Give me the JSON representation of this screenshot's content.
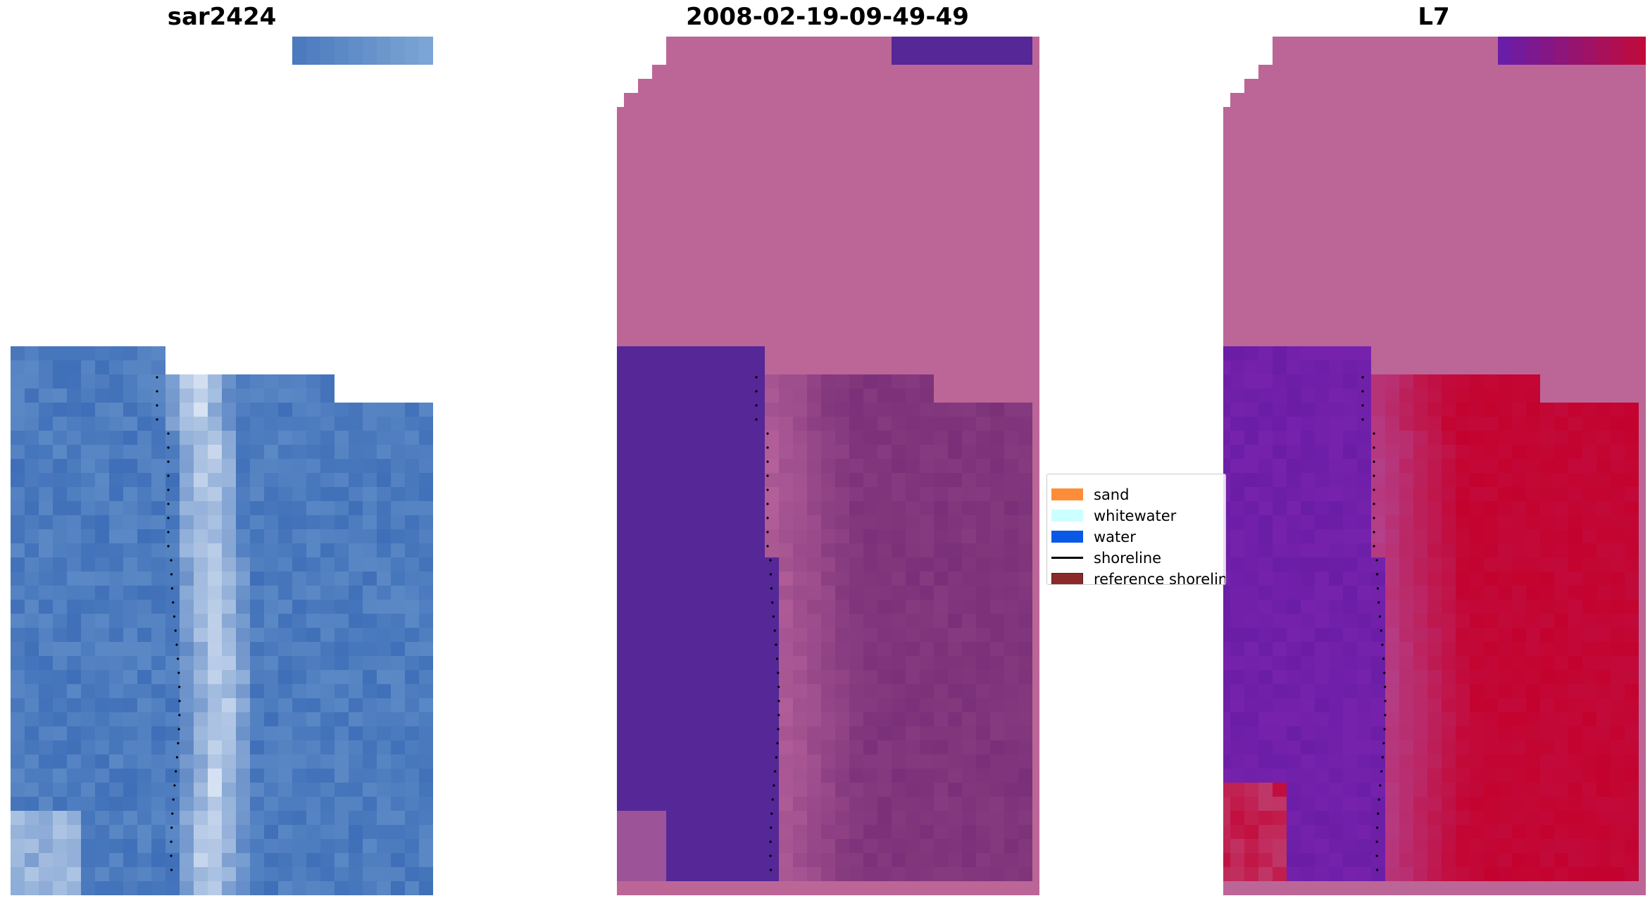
{
  "panels": [
    {
      "title": "sar2424",
      "style": "rgb"
    },
    {
      "title": "2008-02-19-09-49-49",
      "style": "classified"
    },
    {
      "title": "L7",
      "style": "index"
    }
  ],
  "legend": {
    "items": [
      {
        "label": "sand",
        "color": "#ff8c38",
        "kind": "patch"
      },
      {
        "label": "whitewater",
        "color": "#ccffff",
        "kind": "patch"
      },
      {
        "label": "water",
        "color": "#0a58e6",
        "kind": "patch"
      },
      {
        "label": "shoreline",
        "color": "#000000",
        "kind": "line"
      },
      {
        "label": "reference shoreline",
        "color": "#8b2a2a",
        "kind": "patch"
      }
    ]
  },
  "colors": {
    "nodata_pink": "#bc6697",
    "water_purple": "#552797",
    "sar_blue": "#3f6fb8",
    "sar_white": "#e6eef8",
    "index_red": "#c20a3a",
    "index_purple": "#6a1da6"
  }
}
